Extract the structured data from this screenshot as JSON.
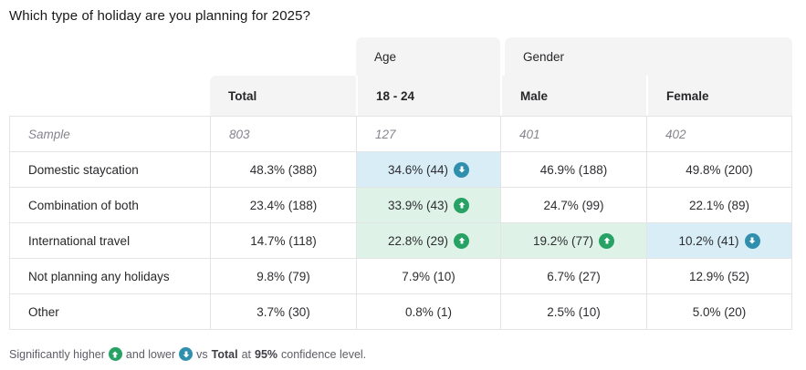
{
  "title": "Which type of holiday are you planning for 2025?",
  "colors": {
    "header_bg": "#f4f4f5",
    "border": "#e4e4e7",
    "sig_up_cell_bg": "#def2e7",
    "sig_down_cell_bg": "#d8edf6",
    "sig_up_badge": "#27a265",
    "sig_down_badge": "#318fae"
  },
  "table": {
    "group_headers": [
      {
        "label": "Age"
      },
      {
        "label": "Gender"
      }
    ],
    "column_headers": {
      "total": "Total",
      "age_18_24": "18 - 24",
      "male": "Male",
      "female": "Female"
    },
    "sample_row": {
      "label": "Sample",
      "values": [
        "803",
        "127",
        "401",
        "402"
      ]
    },
    "rows": [
      {
        "label": "Domestic staycation",
        "cells": [
          {
            "text": "48.3% (388)"
          },
          {
            "text": "34.6% (44)",
            "sig": "down"
          },
          {
            "text": "46.9% (188)"
          },
          {
            "text": "49.8% (200)"
          }
        ]
      },
      {
        "label": "Combination of both",
        "cells": [
          {
            "text": "23.4% (188)"
          },
          {
            "text": "33.9% (43)",
            "sig": "up"
          },
          {
            "text": "24.7% (99)"
          },
          {
            "text": "22.1% (89)"
          }
        ]
      },
      {
        "label": "International travel",
        "cells": [
          {
            "text": "14.7% (118)"
          },
          {
            "text": "22.8% (29)",
            "sig": "up"
          },
          {
            "text": "19.2% (77)",
            "sig": "up"
          },
          {
            "text": "10.2% (41)",
            "sig": "down"
          }
        ]
      },
      {
        "label": "Not planning any holidays",
        "cells": [
          {
            "text": "9.8% (79)"
          },
          {
            "text": "7.9% (10)"
          },
          {
            "text": "6.7% (27)"
          },
          {
            "text": "12.9% (52)"
          }
        ]
      },
      {
        "label": "Other",
        "cells": [
          {
            "text": "3.7% (30)"
          },
          {
            "text": "0.8% (1)"
          },
          {
            "text": "2.5% (10)"
          },
          {
            "text": "5.0% (20)"
          }
        ]
      }
    ]
  },
  "footnote": {
    "part1": "Significantly higher",
    "part2": "and lower",
    "part3": "vs",
    "bold1": "Total",
    "part4": "at",
    "bold2": "95%",
    "part5": "confidence level."
  },
  "chart_data": {
    "type": "table",
    "title": "Which type of holiday are you planning for 2025?",
    "columns": [
      "Total",
      "18 - 24",
      "Male",
      "Female"
    ],
    "column_groups": [
      {
        "label": "Age",
        "columns": [
          "18 - 24"
        ]
      },
      {
        "label": "Gender",
        "columns": [
          "Male",
          "Female"
        ]
      }
    ],
    "sample_sizes": {
      "Total": 803,
      "18 - 24": 127,
      "Male": 401,
      "Female": 402
    },
    "rows": [
      {
        "label": "Domestic staycation",
        "values": [
          {
            "pct": 48.3,
            "n": 388
          },
          {
            "pct": 34.6,
            "n": 44,
            "significance": "lower"
          },
          {
            "pct": 46.9,
            "n": 188
          },
          {
            "pct": 49.8,
            "n": 200
          }
        ]
      },
      {
        "label": "Combination of both",
        "values": [
          {
            "pct": 23.4,
            "n": 188
          },
          {
            "pct": 33.9,
            "n": 43,
            "significance": "higher"
          },
          {
            "pct": 24.7,
            "n": 99
          },
          {
            "pct": 22.1,
            "n": 89
          }
        ]
      },
      {
        "label": "International travel",
        "values": [
          {
            "pct": 14.7,
            "n": 118
          },
          {
            "pct": 22.8,
            "n": 29,
            "significance": "higher"
          },
          {
            "pct": 19.2,
            "n": 77,
            "significance": "higher"
          },
          {
            "pct": 10.2,
            "n": 41,
            "significance": "lower"
          }
        ]
      },
      {
        "label": "Not planning any holidays",
        "values": [
          {
            "pct": 9.8,
            "n": 79
          },
          {
            "pct": 7.9,
            "n": 10
          },
          {
            "pct": 6.7,
            "n": 27
          },
          {
            "pct": 12.9,
            "n": 52
          }
        ]
      },
      {
        "label": "Other",
        "values": [
          {
            "pct": 3.7,
            "n": 30
          },
          {
            "pct": 0.8,
            "n": 1
          },
          {
            "pct": 2.5,
            "n": 10
          },
          {
            "pct": 5.0,
            "n": 20
          }
        ]
      }
    ],
    "note": "Significantly higher and lower vs Total at 95% confidence level."
  }
}
